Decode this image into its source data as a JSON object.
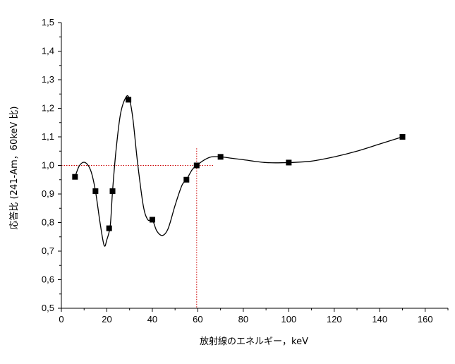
{
  "chart_data": {
    "type": "scatter",
    "xlabel": "放射線のエネルギー，keV",
    "ylabel": "応答比 (241-Am，60keV 比)",
    "xlim": [
      0,
      170
    ],
    "ylim": [
      0.5,
      1.5
    ],
    "x_ticks": [
      0,
      20,
      40,
      60,
      80,
      100,
      120,
      140,
      160
    ],
    "y_ticks": [
      0.5,
      0.6,
      0.7,
      0.8,
      0.9,
      1.0,
      1.1,
      1.2,
      1.3,
      1.4,
      1.5
    ],
    "x_tick_labels": [
      "0",
      "20",
      "40",
      "60",
      "80",
      "100",
      "120",
      "140",
      "160"
    ],
    "y_tick_labels": [
      "0,5",
      "0,6",
      "0,7",
      "0,8",
      "0,9",
      "1,0",
      "1,1",
      "1,2",
      "1,3",
      "1,4",
      "1,5"
    ],
    "grid": false,
    "points": {
      "x": [
        6,
        15,
        21,
        22.5,
        29.5,
        40,
        55,
        59.5,
        70,
        100,
        150
      ],
      "y": [
        0.96,
        0.91,
        0.78,
        0.91,
        1.23,
        0.81,
        0.95,
        1.0,
        1.03,
        1.01,
        1.1
      ]
    },
    "fit_curve": {
      "x": [
        6,
        8,
        10.5,
        13,
        15,
        17,
        18.8,
        20,
        21.5,
        22.5,
        24,
        26,
        28.5,
        30,
        31.5,
        33.5,
        36,
        38,
        40,
        42,
        44.5,
        47,
        50,
        53,
        55,
        57.5,
        59.5,
        63,
        66,
        70,
        75,
        80,
        90,
        100,
        110,
        120,
        130,
        140,
        150
      ],
      "y": [
        0.96,
        1.0,
        1.01,
        0.98,
        0.91,
        0.8,
        0.72,
        0.74,
        0.79,
        0.91,
        1.05,
        1.18,
        1.24,
        1.23,
        1.16,
        1.01,
        0.86,
        0.81,
        0.81,
        0.77,
        0.755,
        0.78,
        0.86,
        0.93,
        0.95,
        0.985,
        1.0,
        1.02,
        1.03,
        1.03,
        1.025,
        1.02,
        1.01,
        1.01,
        1.015,
        1.03,
        1.05,
        1.075,
        1.1
      ]
    },
    "reference_lines": {
      "y": 1.0,
      "x": 59.5,
      "color": "#cc0000"
    },
    "marker_color": "#000000",
    "line_color": "#000000"
  }
}
